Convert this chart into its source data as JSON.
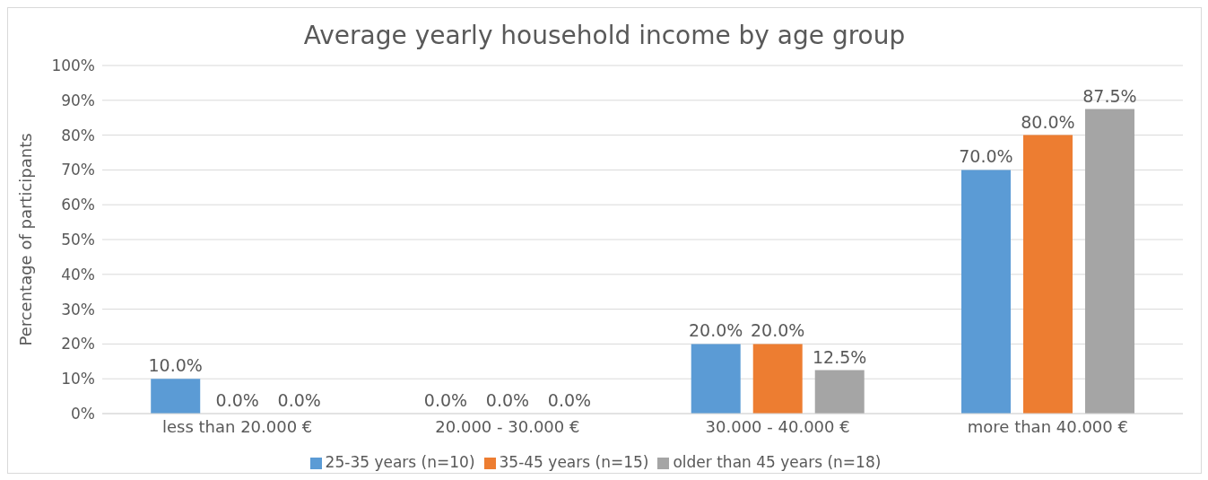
{
  "chart_data": {
    "type": "bar",
    "title": "Average yearly household income by age group",
    "ylabel": "Percentage of participants",
    "categories": [
      "less than 20.000 €",
      "20.000 - 30.000 €",
      "30.000 - 40.000 €",
      "more than 40.000 €"
    ],
    "series": [
      {
        "name": "25-35 years (n=10)",
        "color": "#5b9bd5",
        "values": [
          10,
          0,
          20,
          70
        ],
        "value_labels": [
          "10.0%",
          "0.0%",
          "20.0%",
          "70.0%"
        ]
      },
      {
        "name": "35-45 years (n=15)",
        "color": "#ed7d31",
        "values": [
          0,
          0,
          20,
          80
        ],
        "value_labels": [
          "0.0%",
          "0.0%",
          "20.0%",
          "80.0%"
        ]
      },
      {
        "name": "older than 45 years (n=18)",
        "color": "#a5a5a5",
        "values": [
          0,
          0,
          12.5,
          87.5
        ],
        "value_labels": [
          "0.0%",
          "0.0%",
          "12.5%",
          "87.5%"
        ]
      }
    ],
    "ylim": [
      0,
      100
    ],
    "yticks": [
      {
        "value": 0,
        "label": "0%"
      },
      {
        "value": 10,
        "label": "10%"
      },
      {
        "value": 20,
        "label": "20%"
      },
      {
        "value": 30,
        "label": "30%"
      },
      {
        "value": 40,
        "label": "40%"
      },
      {
        "value": 50,
        "label": "50%"
      },
      {
        "value": 60,
        "label": "60%"
      },
      {
        "value": 70,
        "label": "70%"
      },
      {
        "value": 80,
        "label": "80%"
      },
      {
        "value": 90,
        "label": "90%"
      },
      {
        "value": 100,
        "label": "100%"
      }
    ],
    "grid": "y",
    "legend": "bottom"
  }
}
